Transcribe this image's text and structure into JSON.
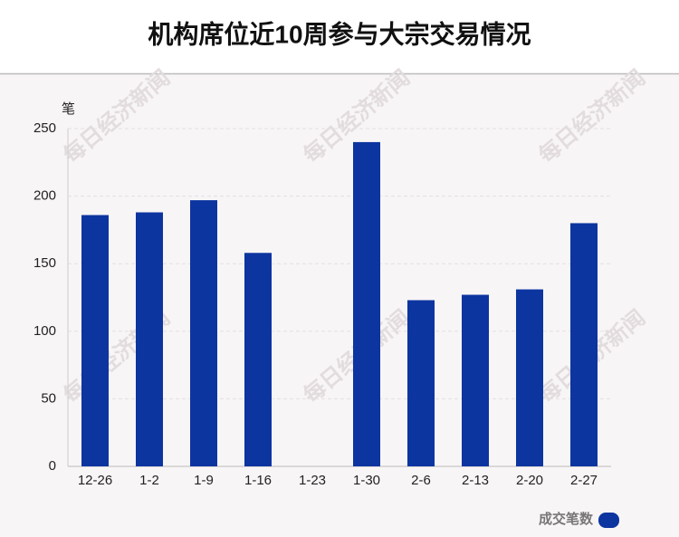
{
  "chart_data": {
    "type": "bar",
    "title": "机构席位近10周参与大宗交易情况",
    "y_unit": "笔",
    "categories": [
      "12-26",
      "1-2",
      "1-9",
      "1-16",
      "1-23",
      "1-30",
      "2-6",
      "2-13",
      "2-20",
      "2-27"
    ],
    "series": [
      {
        "name": "成交笔数",
        "color": "#0d35a0",
        "values": [
          186,
          188,
          197,
          158,
          0,
          240,
          123,
          127,
          131,
          180
        ]
      }
    ],
    "ylim": [
      0,
      250
    ],
    "yticks": [
      0,
      50,
      100,
      150,
      200,
      250
    ],
    "grid": true,
    "legend": "bottom-right",
    "watermark": "每日经济新闻"
  }
}
